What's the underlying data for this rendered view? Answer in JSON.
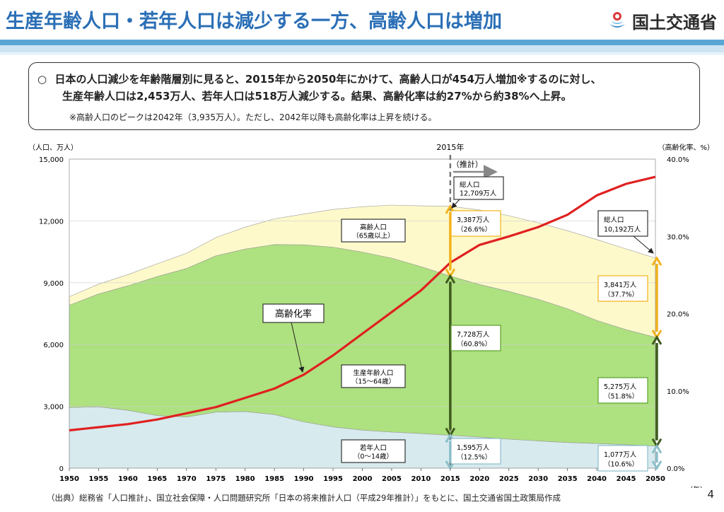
{
  "header": {
    "title": "生産年齢人口・若年人口は減少する一方、高齢人口は増加",
    "logo_text": "国土交通省"
  },
  "summary": {
    "bullet": "○",
    "line1": "日本の人口減少を年齢階層別に見ると、2015年から2050年にかけて、高齢人口が454万人増加※するのに対し、",
    "line2": "生産年齢人口は2,453万人、若年人口は518万人減少する。結果、高齢化率は約27%から約38%へ上昇。",
    "note": "※高齢人口のピークは2042年（3,935万人）。ただし、2042年以降も高齢化率は上昇を続ける。"
  },
  "footer": {
    "source": "（出典）総務省「人口推計」、国立社会保障・人口問題研究所「日本の将来推計人口（平成29年推計）」をもとに、国土交通省国土政策局作成",
    "page": "4"
  },
  "chart_data": {
    "type": "area",
    "stacked": true,
    "x_label": "（年）",
    "y_left_label": "（人口、万人）",
    "y_right_label": "（高齢化率、%）",
    "y_left_range": [
      0,
      15000
    ],
    "y_right_range": [
      0,
      40
    ],
    "y_left_ticks": [
      "0",
      "3,000",
      "6,000",
      "9,000",
      "12,000",
      "15,000"
    ],
    "y_right_ticks": [
      "0.0%",
      "10.0%",
      "20.0%",
      "30.0%",
      "40.0%"
    ],
    "x_ticks": [
      "1950",
      "1955",
      "1960",
      "1965",
      "1970",
      "1975",
      "1980",
      "1985",
      "1990",
      "1995",
      "2000",
      "2005",
      "2010",
      "2015",
      "2020",
      "2025",
      "2030",
      "2035",
      "2040",
      "2045",
      "2050"
    ],
    "years": [
      1950,
      1955,
      1960,
      1965,
      1970,
      1975,
      1980,
      1985,
      1990,
      1995,
      2000,
      2005,
      2010,
      2015,
      2020,
      2025,
      2030,
      2035,
      2040,
      2045,
      2050
    ],
    "series": [
      {
        "name": "若年人口（0～14歳）",
        "color": "#d7eaee",
        "values": [
          2943,
          2980,
          2807,
          2553,
          2482,
          2722,
          2751,
          2603,
          2249,
          2001,
          1847,
          1752,
          1680,
          1595,
          1507,
          1407,
          1321,
          1246,
          1194,
          1138,
          1077
        ]
      },
      {
        "name": "生産年齢人口（15～64歳）",
        "color": "#aee17f",
        "values": [
          4966,
          5473,
          6047,
          6744,
          7212,
          7581,
          7883,
          8251,
          8590,
          8726,
          8638,
          8442,
          8103,
          7728,
          7406,
          7170,
          6875,
          6494,
          5978,
          5584,
          5275
        ]
      },
      {
        "name": "高齢人口（65歳以上）",
        "color": "#fdf9cb",
        "values": [
          416,
          479,
          540,
          624,
          739,
          887,
          1065,
          1247,
          1493,
          1828,
          2204,
          2576,
          2948,
          3387,
          3619,
          3677,
          3716,
          3782,
          3921,
          3919,
          3841
        ]
      }
    ],
    "aging_rate": {
      "name": "高齢化率",
      "color": "#e02020",
      "values": [
        4.9,
        5.3,
        5.7,
        6.3,
        7.1,
        7.9,
        9.1,
        10.3,
        12.1,
        14.6,
        17.4,
        20.2,
        23.0,
        26.6,
        28.9,
        30.0,
        31.2,
        32.8,
        35.3,
        36.8,
        37.7
      ]
    },
    "divider": {
      "year": 2015,
      "label": "2015年",
      "projection_label": "（推計）"
    },
    "annotations": {
      "total_2015": [
        "総人口",
        "12,709万人"
      ],
      "total_2050": [
        "総人口",
        "10,192万人"
      ],
      "elderly_2015": [
        "3,387万人",
        "（26.6%）"
      ],
      "working_2015": [
        "7,728万人",
        "（60.8%）"
      ],
      "young_2015": [
        "1,595万人",
        "（12.5%）"
      ],
      "elderly_2050": [
        "3,841万人",
        "（37.7%）"
      ],
      "working_2050": [
        "5,275万人",
        "（51.8%）"
      ],
      "young_2050": [
        "1,077万人",
        "（10.6%）"
      ],
      "label_elderly": [
        "高齢人口",
        "（65歳以上）"
      ],
      "label_working": [
        "生産年齢人口",
        "（15～64歳）"
      ],
      "label_young": [
        "若年人口",
        "（0～14歳）"
      ],
      "label_rate": "高齢化率"
    }
  }
}
